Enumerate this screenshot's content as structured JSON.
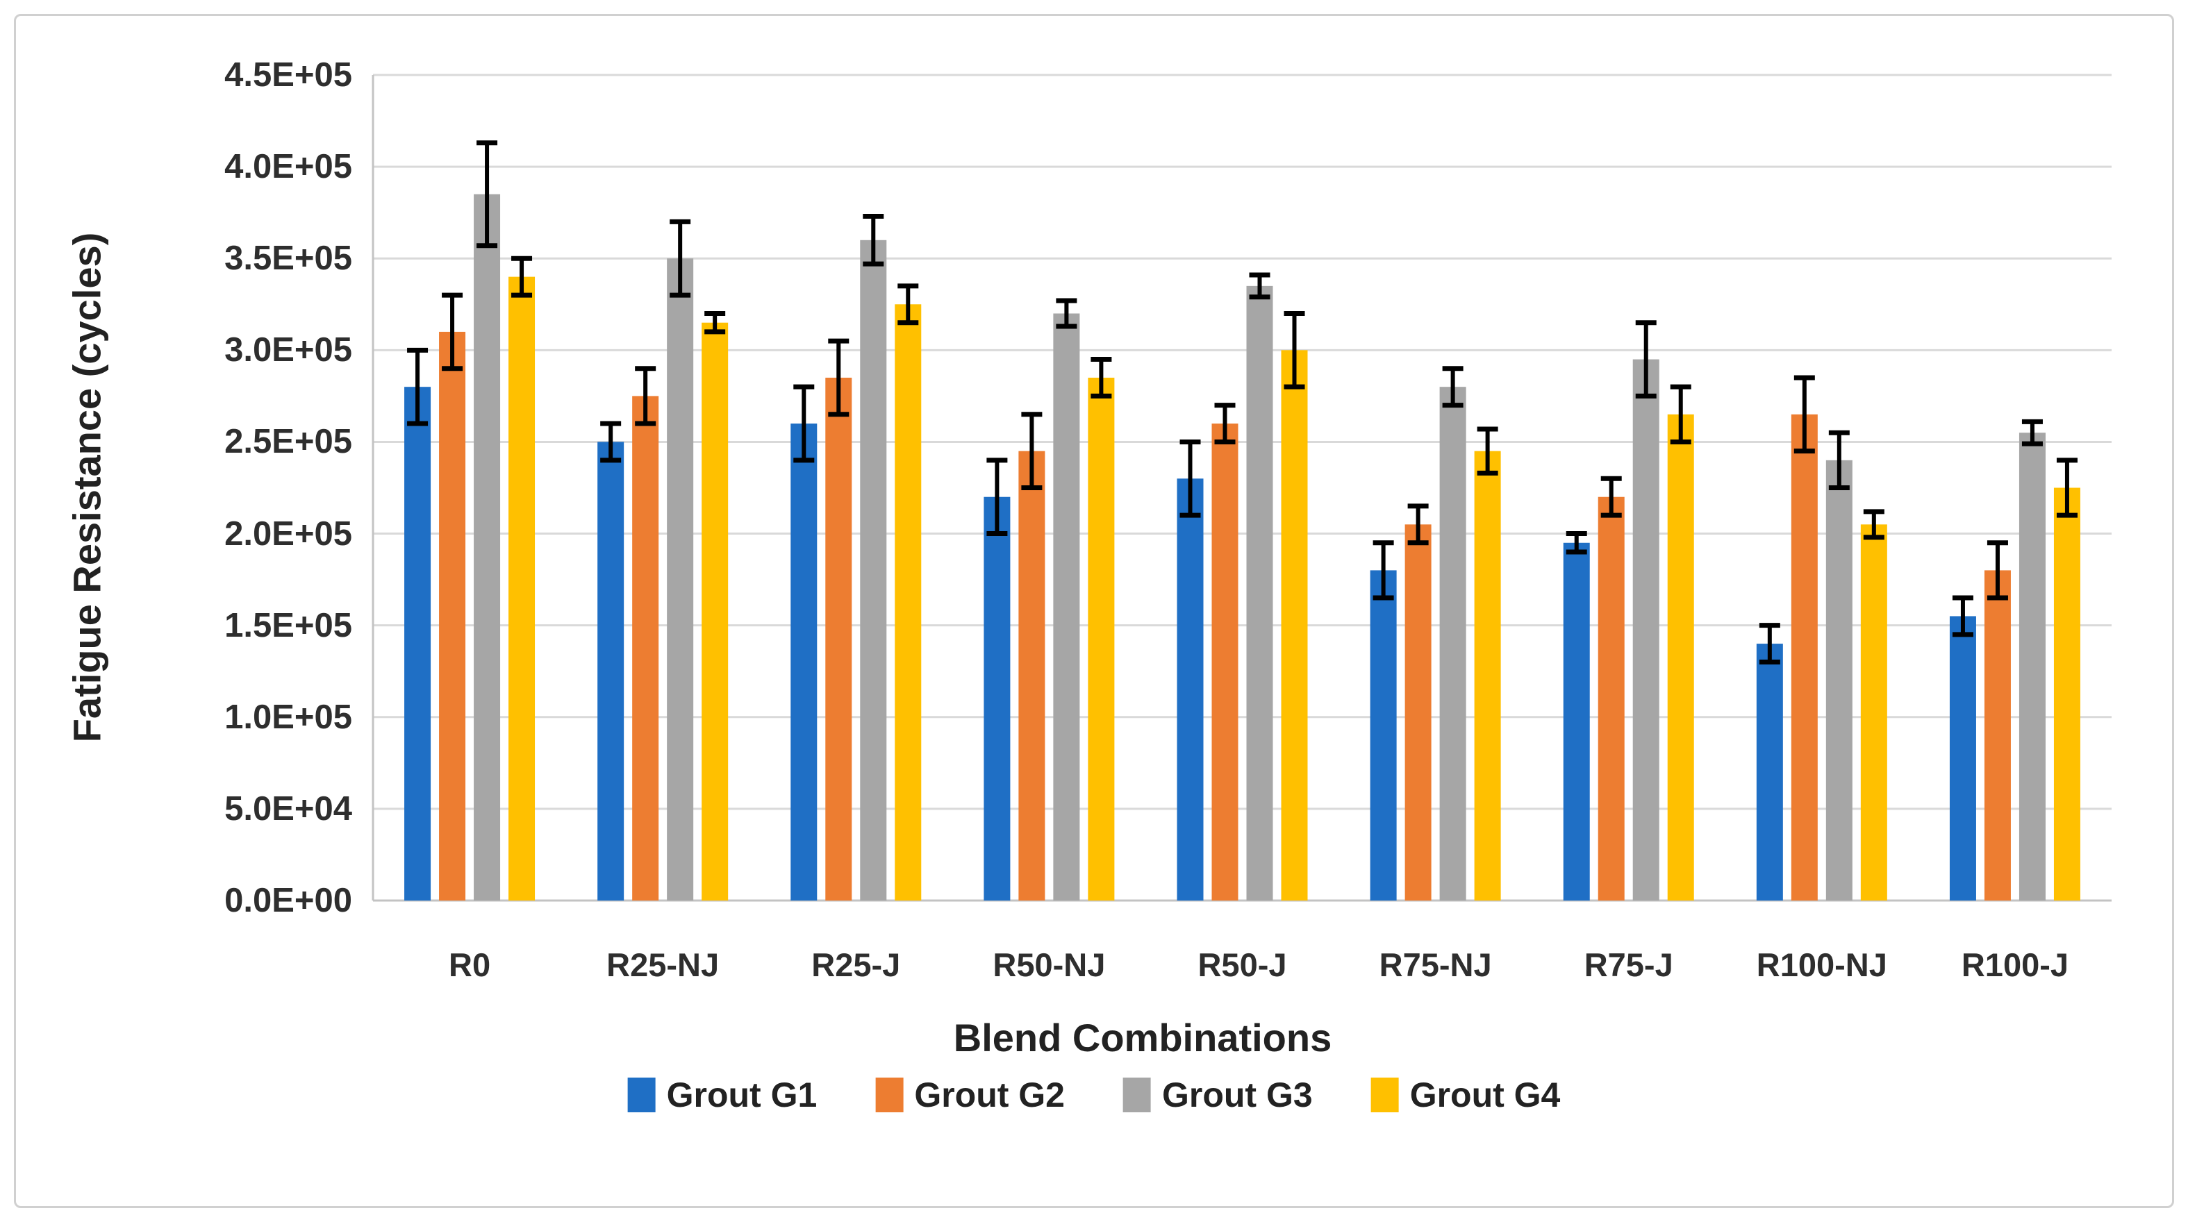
{
  "figure": {
    "background_color": "#FFFFFF",
    "border_color": "#D0D0D0"
  },
  "chart_data": {
    "type": "bar",
    "title": "",
    "xlabel": "Blend Combinations",
    "ylabel": "Fatigue Resistance (cycles)",
    "categories": [
      "R0",
      "R25-NJ",
      "R25-J",
      "R50-NJ",
      "R50-J",
      "R75-NJ",
      "R75-J",
      "R100-NJ",
      "R100-J"
    ],
    "series": [
      {
        "name": "Grout G1",
        "color": "#1F6FC5",
        "values": [
          280000,
          250000,
          260000,
          220000,
          230000,
          180000,
          195000,
          140000,
          155000
        ],
        "errors": [
          20000,
          10000,
          20000,
          20000,
          20000,
          15000,
          5000,
          10000,
          10000
        ]
      },
      {
        "name": "Grout G2",
        "color": "#ED7D31",
        "values": [
          310000,
          275000,
          285000,
          245000,
          260000,
          205000,
          220000,
          265000,
          180000
        ],
        "errors": [
          20000,
          15000,
          20000,
          20000,
          10000,
          10000,
          10000,
          20000,
          15000
        ]
      },
      {
        "name": "Grout G3",
        "color": "#A6A6A6",
        "values": [
          385000,
          350000,
          360000,
          320000,
          335000,
          280000,
          295000,
          240000,
          255000
        ],
        "errors": [
          28000,
          20000,
          13000,
          7000,
          6000,
          10000,
          20000,
          15000,
          6000
        ]
      },
      {
        "name": "Grout G4",
        "color": "#FFC000",
        "values": [
          340000,
          315000,
          325000,
          285000,
          300000,
          245000,
          265000,
          205000,
          225000
        ],
        "errors": [
          10000,
          5000,
          10000,
          10000,
          20000,
          12000,
          15000,
          7000,
          15000
        ]
      }
    ],
    "ylim": [
      0,
      450000
    ],
    "ytick_step": 50000,
    "ytick_labels": [
      "0.0E+00",
      "5.0E+04",
      "1.0E+05",
      "1.5E+05",
      "2.0E+05",
      "2.5E+05",
      "3.0E+05",
      "3.5E+05",
      "4.0E+05",
      "4.5E+05"
    ],
    "grid": "horizontal",
    "gridline_color": "#D9D9D9",
    "axis_line_color": "#C3C3C3",
    "error_bar_color": "#000000",
    "legend_position": "bottom"
  }
}
